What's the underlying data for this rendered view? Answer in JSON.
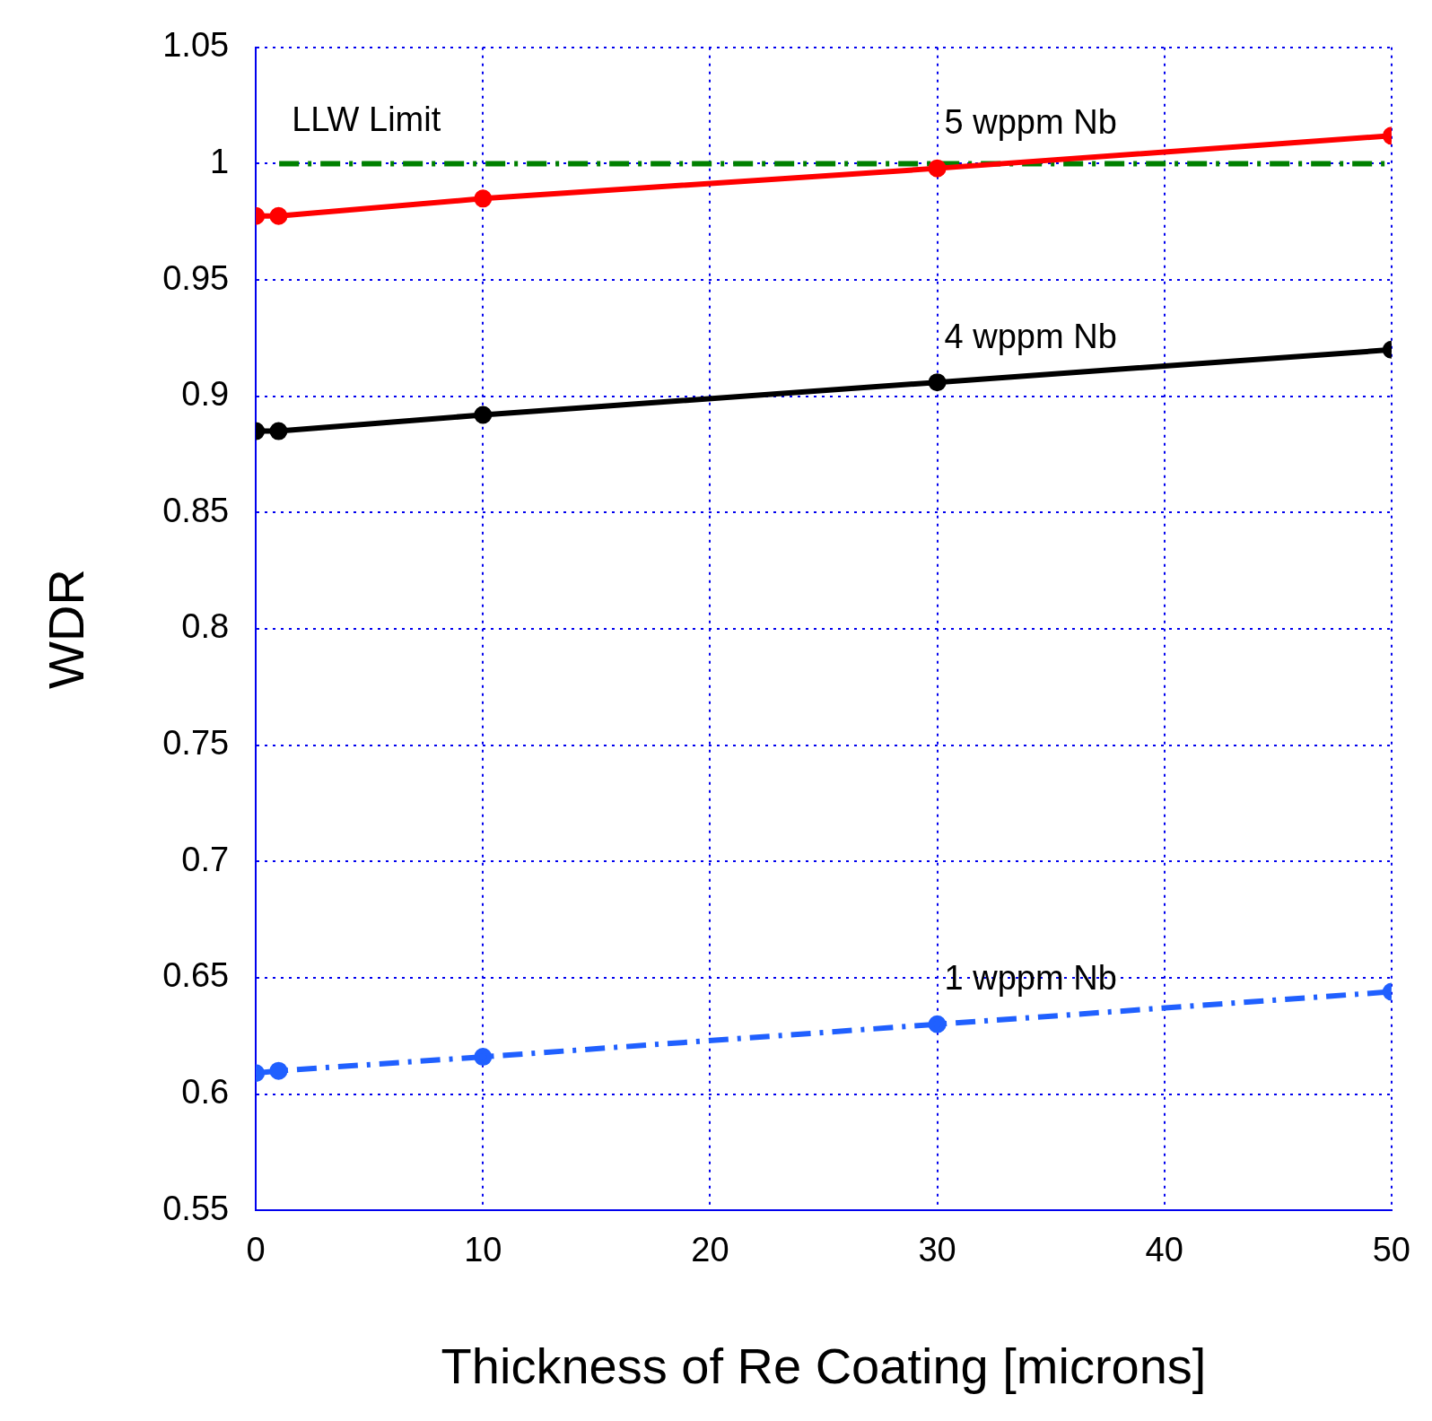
{
  "chart_data": {
    "type": "line",
    "xlabel": "Thickness of Re Coating [microns]",
    "ylabel": "WDR",
    "x": [
      0,
      1,
      10,
      30,
      50
    ],
    "series": [
      {
        "name": "5 wppm Nb",
        "color": "#ff0000",
        "values": [
          0.9775,
          0.9775,
          0.985,
          0.998,
          1.012
        ],
        "line_style": "solid"
      },
      {
        "name": "4 wppm Nb",
        "color": "#000000",
        "values": [
          0.885,
          0.885,
          0.892,
          0.906,
          0.92
        ],
        "line_style": "solid"
      },
      {
        "name": "1 wppm Nb",
        "color": "#2060ff",
        "values": [
          0.609,
          0.61,
          0.616,
          0.63,
          0.644
        ],
        "line_style": "dashed"
      }
    ],
    "xlim": [
      0,
      50
    ],
    "xticks": [
      0,
      10,
      20,
      30,
      40,
      50
    ],
    "ylim": [
      0.55,
      1.05
    ],
    "yticks": [
      0.55,
      0.6,
      0.65,
      0.7,
      0.75,
      0.8,
      0.85,
      0.9,
      0.95,
      1,
      1.05
    ],
    "ref_lines": [
      {
        "axis": "y",
        "value": 1,
        "label": "LLW Limit",
        "color": "#008000",
        "line_style": "dashed"
      }
    ],
    "grid": true,
    "legend": false,
    "marker": "circle"
  }
}
